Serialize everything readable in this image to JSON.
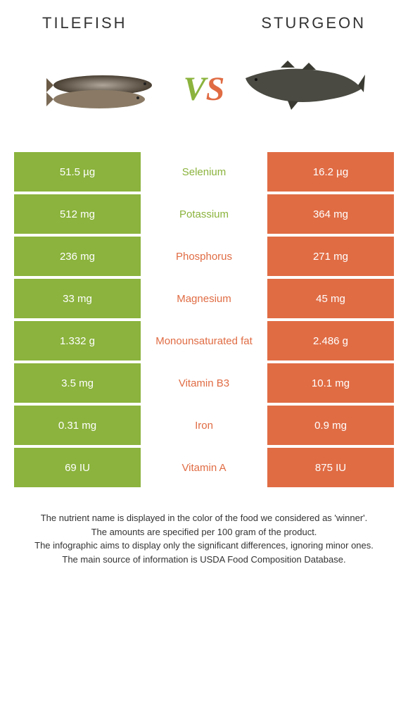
{
  "colors": {
    "left": "#8bb33d",
    "right": "#e06c44",
    "text": "#333333",
    "background": "#ffffff"
  },
  "header": {
    "left_title": "TILEFISH",
    "right_title": "STURGEON",
    "vs_v": "V",
    "vs_s": "S"
  },
  "rows": [
    {
      "left": "51.5 µg",
      "label": "Selenium",
      "right": "16.2 µg",
      "winner": "left"
    },
    {
      "left": "512 mg",
      "label": "Potassium",
      "right": "364 mg",
      "winner": "left"
    },
    {
      "left": "236 mg",
      "label": "Phosphorus",
      "right": "271 mg",
      "winner": "right"
    },
    {
      "left": "33 mg",
      "label": "Magnesium",
      "right": "45 mg",
      "winner": "right"
    },
    {
      "left": "1.332 g",
      "label": "Monounsaturated fat",
      "right": "2.486 g",
      "winner": "right"
    },
    {
      "left": "3.5 mg",
      "label": "Vitamin B3",
      "right": "10.1 mg",
      "winner": "right"
    },
    {
      "left": "0.31 mg",
      "label": "Iron",
      "right": "0.9 mg",
      "winner": "right"
    },
    {
      "left": "69 IU",
      "label": "Vitamin A",
      "right": "875 IU",
      "winner": "right"
    }
  ],
  "footer": {
    "line1": "The nutrient name is displayed in the color of the food we considered as 'winner'.",
    "line2": "The amounts are specified per 100 gram of the product.",
    "line3": "The infographic aims to display only the significant differences, ignoring minor ones.",
    "line4": "The main source of information is USDA Food Composition Database."
  }
}
